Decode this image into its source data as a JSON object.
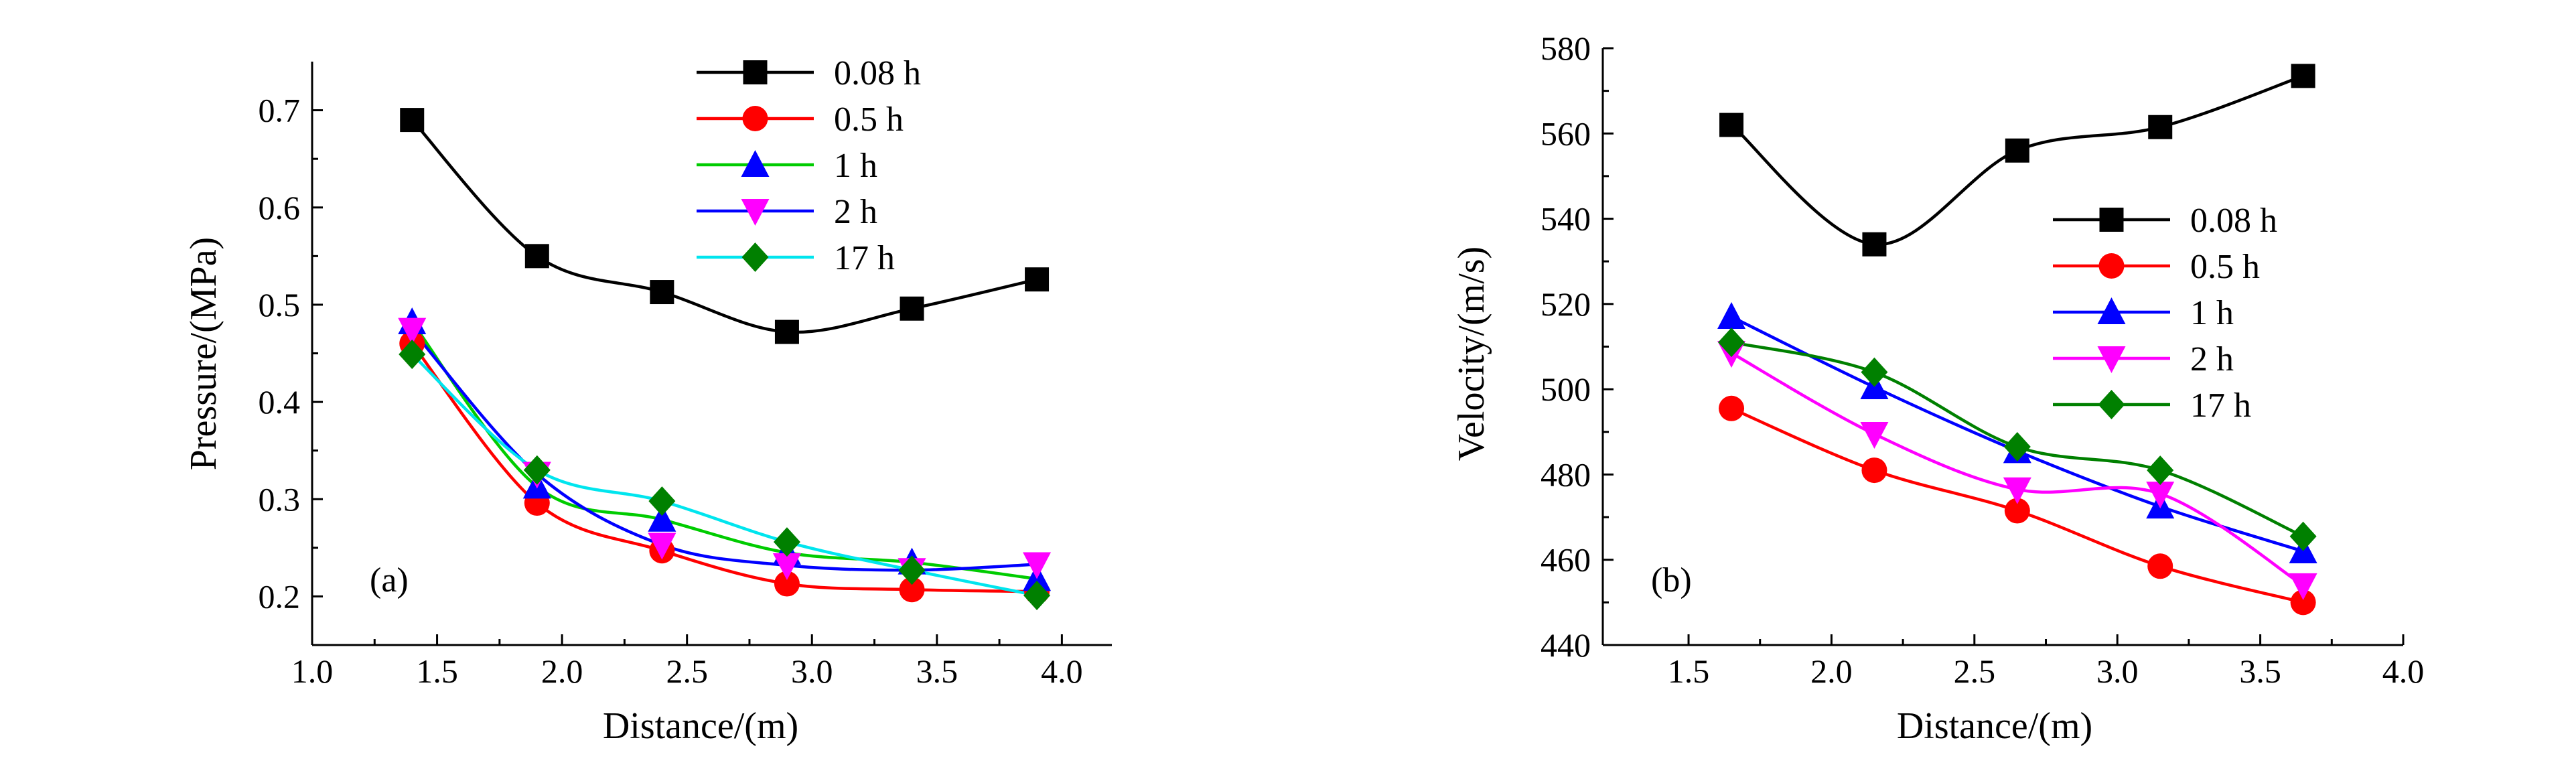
{
  "chart_data": [
    {
      "type": "line",
      "panel_label": "(a)",
      "xlabel": "Distance/(m)",
      "ylabel": "Pressure/(MPa)",
      "xlim": [
        1.0,
        4.2
      ],
      "ylim": [
        0.15,
        0.75
      ],
      "xticks": [
        1.0,
        1.5,
        2.0,
        2.5,
        3.0,
        3.5,
        4.0
      ],
      "xtick_labels": [
        "1.0",
        "1.5",
        "2.0",
        "2.5",
        "3.0",
        "3.5",
        "4.0"
      ],
      "yticks": [
        0.2,
        0.3,
        0.4,
        0.5,
        0.6,
        0.7
      ],
      "ytick_labels": [
        "0.2",
        "0.3",
        "0.4",
        "0.5",
        "0.6",
        "0.7"
      ],
      "legend_position": "top-right",
      "grid": false,
      "x": [
        1.4,
        1.9,
        2.4,
        2.9,
        3.4,
        3.9
      ],
      "series": [
        {
          "name": "0.08 h",
          "color": "#000000",
          "marker": "square",
          "values": [
            0.69,
            0.55,
            0.513,
            0.472,
            0.496,
            0.526
          ]
        },
        {
          "name": "0.5 h",
          "color": "#ff0000",
          "marker": "circle",
          "values": [
            0.46,
            0.296,
            0.247,
            0.213,
            0.207,
            0.205
          ]
        },
        {
          "name": "1 h",
          "color": "#0000ff",
          "marker": "triangle-up",
          "lineColor": "#00cc00",
          "values": [
            0.482,
            0.313,
            0.279,
            0.245,
            0.235,
            0.218
          ]
        },
        {
          "name": "2 h",
          "color": "#ff00ff",
          "marker": "triangle-down",
          "lineColor": "#0000ff",
          "values": [
            0.474,
            0.326,
            0.253,
            0.232,
            0.227,
            0.233
          ]
        },
        {
          "name": "17 h",
          "color": "#008000",
          "marker": "diamond",
          "lineColor": "#00e5ee",
          "values": [
            0.449,
            0.33,
            0.298,
            0.256,
            0.227,
            0.201
          ]
        }
      ]
    },
    {
      "type": "line",
      "panel_label": "(b)",
      "xlabel": "Distance/(m)",
      "ylabel": "Velocity/(m/s)",
      "xlim": [
        1.2,
        4.0
      ],
      "ylim": [
        440,
        580
      ],
      "xticks": [
        1.5,
        2.0,
        2.5,
        3.0,
        3.5,
        4.0
      ],
      "xtick_labels": [
        "1.5",
        "2.0",
        "2.5",
        "3.0",
        "3.5",
        "4.0"
      ],
      "yticks": [
        440,
        460,
        480,
        500,
        520,
        540,
        560,
        580
      ],
      "ytick_labels": [
        "440",
        "460",
        "480",
        "500",
        "520",
        "540",
        "560",
        "580"
      ],
      "legend_position": "center-right",
      "grid": false,
      "x": [
        1.65,
        2.15,
        2.65,
        3.15,
        3.65
      ],
      "series": [
        {
          "name": "0.08 h",
          "color": "#000000",
          "marker": "square",
          "values": [
            562,
            534,
            556,
            561.5,
            573.5
          ]
        },
        {
          "name": "0.5 h",
          "color": "#ff0000",
          "marker": "circle",
          "values": [
            495.5,
            481,
            471.5,
            458.5,
            450
          ]
        },
        {
          "name": "1 h",
          "color": "#0000ff",
          "marker": "triangle-up",
          "values": [
            517,
            500.5,
            485.5,
            472.5,
            462
          ]
        },
        {
          "name": "2 h",
          "color": "#ff00ff",
          "marker": "triangle-down",
          "values": [
            508.5,
            489.5,
            476.5,
            475.5,
            454
          ]
        },
        {
          "name": "17 h",
          "color": "#008000",
          "marker": "diamond",
          "values": [
            511,
            504,
            486.5,
            481,
            465.5
          ]
        }
      ]
    }
  ]
}
